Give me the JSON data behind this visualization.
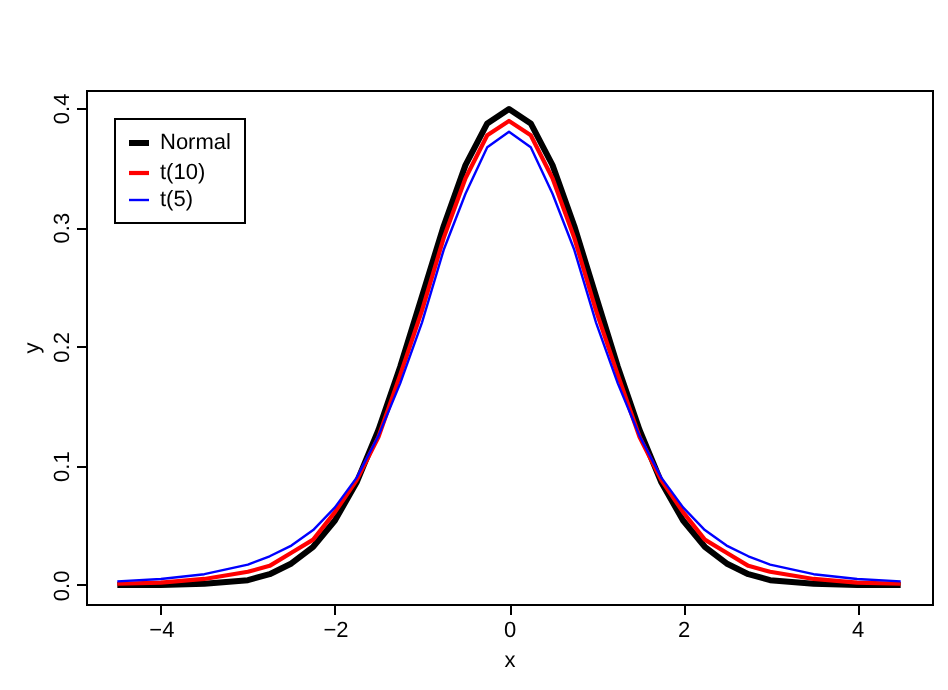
{
  "chart_data": {
    "type": "line",
    "xlabel": "x",
    "ylabel": "y",
    "x": [
      -4.5,
      -4,
      -3.5,
      -3,
      -2.75,
      -2.5,
      -2.25,
      -2,
      -1.75,
      -1.5,
      -1.25,
      -1,
      -0.75,
      -0.5,
      -0.25,
      0,
      0.25,
      0.5,
      0.75,
      1,
      1.25,
      1.5,
      1.75,
      2,
      2.25,
      2.5,
      2.75,
      3,
      3.5,
      4,
      4.5
    ],
    "series": [
      {
        "name": "Normal",
        "color": "#000000",
        "values": [
          0.0,
          0.0,
          0.001,
          0.004,
          0.009,
          0.018,
          0.032,
          0.054,
          0.086,
          0.13,
          0.183,
          0.242,
          0.301,
          0.352,
          0.387,
          0.399,
          0.387,
          0.352,
          0.301,
          0.242,
          0.183,
          0.13,
          0.086,
          0.054,
          0.032,
          0.018,
          0.009,
          0.004,
          0.001,
          0.0,
          0.0
        ]
      },
      {
        "name": "t(10)",
        "color": "#ff0000",
        "values": [
          0.001,
          0.002,
          0.005,
          0.011,
          0.016,
          0.027,
          0.038,
          0.061,
          0.088,
          0.124,
          0.176,
          0.23,
          0.291,
          0.341,
          0.377,
          0.389,
          0.377,
          0.341,
          0.291,
          0.23,
          0.176,
          0.124,
          0.088,
          0.061,
          0.038,
          0.027,
          0.016,
          0.011,
          0.005,
          0.002,
          0.001
        ]
      },
      {
        "name": "t(5)",
        "color": "#0000ff",
        "values": [
          0.003,
          0.005,
          0.009,
          0.017,
          0.024,
          0.033,
          0.046,
          0.065,
          0.09,
          0.125,
          0.169,
          0.22,
          0.281,
          0.328,
          0.367,
          0.38,
          0.367,
          0.328,
          0.281,
          0.22,
          0.169,
          0.125,
          0.09,
          0.065,
          0.046,
          0.033,
          0.024,
          0.017,
          0.009,
          0.005,
          0.003
        ]
      }
    ],
    "xlim": [
      -4.86,
      4.86
    ],
    "xticks": [
      -4,
      -2,
      0,
      2,
      4
    ],
    "ylim": [
      -0.016,
      0.415
    ],
    "yticks": [
      {
        "value": 0,
        "label": "0.0"
      },
      0.1,
      0.2,
      0.3,
      0.4
    ],
    "grid": false,
    "legend": "top left",
    "marker": "none",
    "line_style": "solid"
  }
}
